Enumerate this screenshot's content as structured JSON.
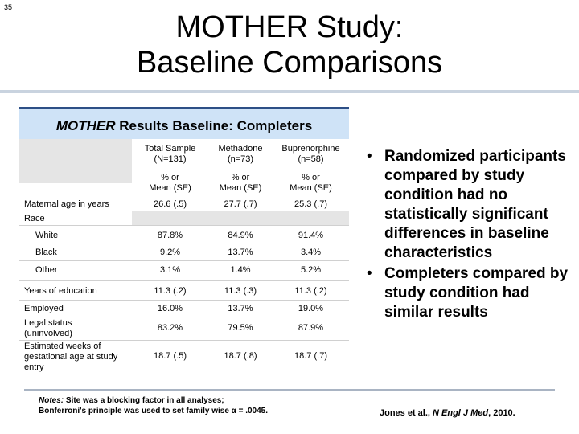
{
  "slide_number": "35",
  "title_line1": "MOTHER Study:",
  "title_line2": "Baseline Comparisons",
  "panel": {
    "title_italic": "MOTHER",
    "title_rest": " Results Baseline: Completers",
    "columns": [
      {
        "name_line1": "Total Sample",
        "name_line2": "(N=131)",
        "stat_line1": "% or",
        "stat_line2": "Mean (SE)"
      },
      {
        "name_line1": "Methadone",
        "name_line2": "(n=73)",
        "stat_line1": "% or",
        "stat_line2": "Mean (SE)"
      },
      {
        "name_line1": "Buprenorphine",
        "name_line2": "(n=58)",
        "stat_line1": "% or",
        "stat_line2": "Mean (SE)"
      }
    ],
    "rows": {
      "maternal_age": {
        "label": "Maternal age in years",
        "values": [
          "26.6 (.5)",
          "27.7 (.7)",
          "25.3 (.7)"
        ]
      },
      "race": {
        "label": "Race"
      },
      "white": {
        "label": "White",
        "values": [
          "87.8%",
          "84.9%",
          "91.4%"
        ]
      },
      "black": {
        "label": "Black",
        "values": [
          "9.2%",
          "13.7%",
          "3.4%"
        ]
      },
      "other": {
        "label": "Other",
        "values": [
          "3.1%",
          "1.4%",
          "5.2%"
        ]
      },
      "education": {
        "label": "Years of education",
        "values": [
          "11.3 (.2)",
          "11.3 (.3)",
          "11.3 (.2)"
        ]
      },
      "employed": {
        "label": "Employed",
        "values": [
          "16.0%",
          "13.7%",
          "19.0%"
        ]
      },
      "legal": {
        "label_line1": "Legal status",
        "label_line2": "(uninvolved)",
        "values": [
          "83.2%",
          "79.5%",
          "87.9%"
        ]
      },
      "gestational": {
        "label_line1": "Estimated weeks of",
        "label_line2": "gestational age at study",
        "label_line3": "entry",
        "values": [
          "18.7 (.5)",
          "18.7 (.8)",
          "18.7 (.7)"
        ]
      }
    }
  },
  "bullets": [
    "Randomized participants compared by study condition had no statistically significant differences in baseline characteristics",
    "Completers compared by study condition had similar results"
  ],
  "bullet_glyph": "•",
  "notes_label": "Notes:",
  "notes_line1": " Site was a blocking factor in all analyses;",
  "notes_line2": "Bonferroni's principle was used to set family wise α = .0045.",
  "citation_pre": "Jones et al., ",
  "citation_journal": "N Engl J Med",
  "citation_post": ", 2010."
}
